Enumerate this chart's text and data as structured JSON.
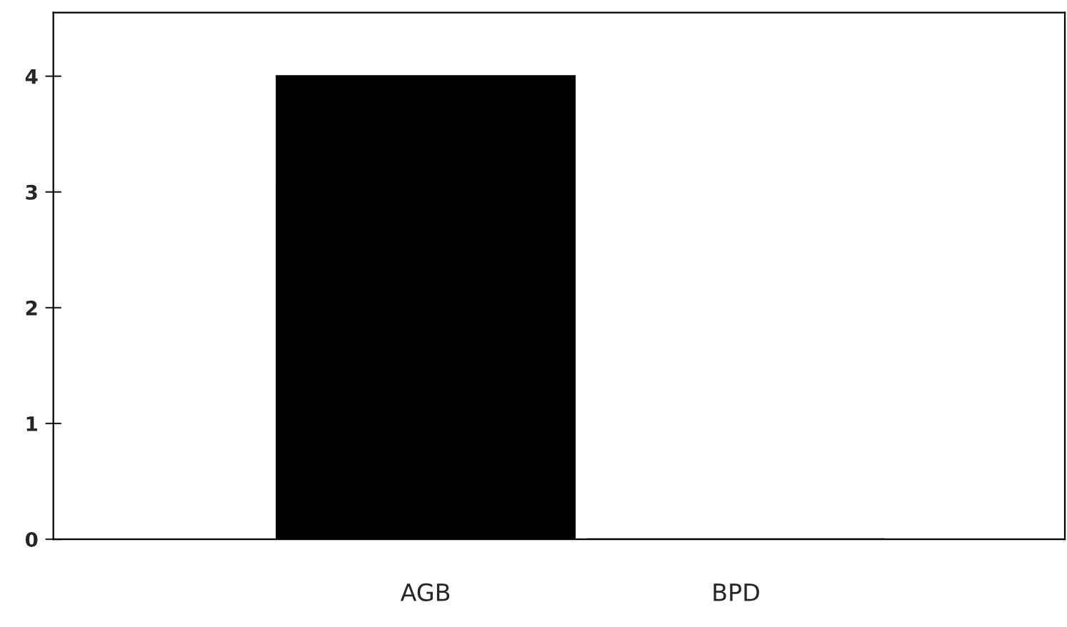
{
  "chart_data": {
    "type": "bar",
    "categories": [
      "AGB",
      "BPD"
    ],
    "values": [
      4,
      0
    ],
    "color": "#000000",
    "ylim": [
      0,
      4.55
    ],
    "yticks": [
      0,
      1,
      2,
      3,
      4
    ],
    "grid": false,
    "legend": false
  }
}
